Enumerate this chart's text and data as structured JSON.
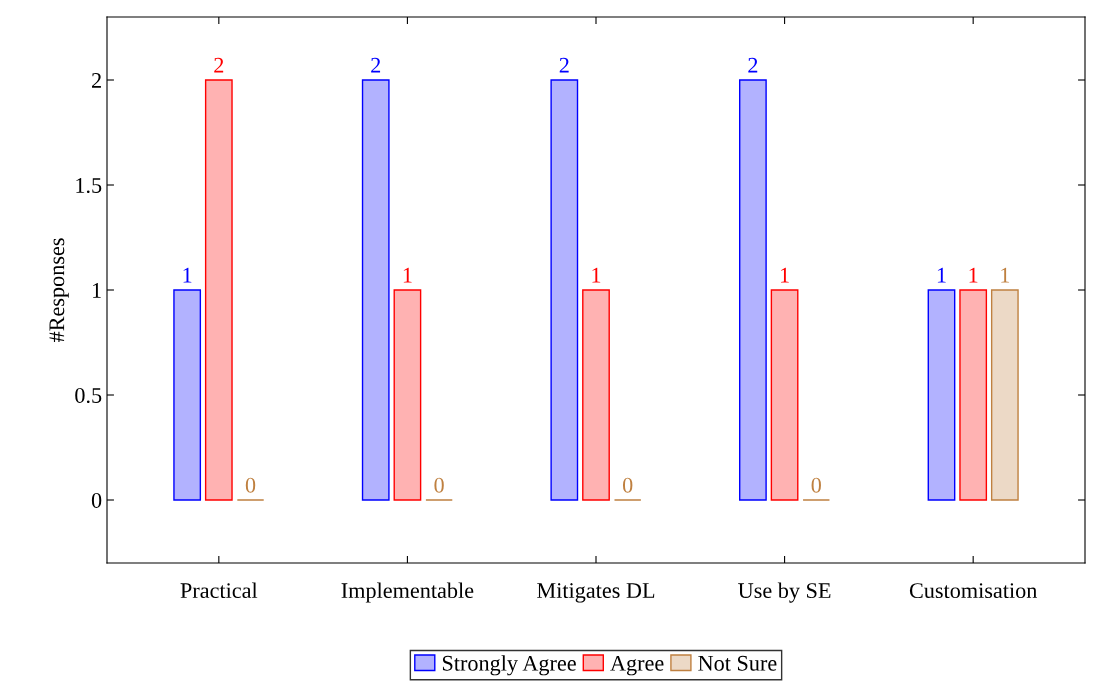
{
  "chart_data": {
    "type": "bar",
    "ylabel": "#Responses",
    "categories": [
      "Practical",
      "Implementable",
      "Mitigates DL",
      "Use by SE",
      "Customisation"
    ],
    "series": [
      {
        "name": "Strongly Agree",
        "color": "#0000ff",
        "values": [
          1,
          2,
          2,
          2,
          1
        ]
      },
      {
        "name": "Agree",
        "color": "#ff0000",
        "values": [
          2,
          1,
          1,
          1,
          1
        ]
      },
      {
        "name": "Not Sure",
        "color": "#bf8040",
        "values": [
          0,
          0,
          0,
          0,
          1
        ]
      }
    ],
    "ylim": [
      -0.3,
      2.3
    ],
    "yticks": [
      0,
      {
        "value": 0.5,
        "label": "0.5"
      },
      1,
      {
        "value": 1.5,
        "label": "1.5"
      },
      2
    ],
    "data_labels": true,
    "legend": "bottom",
    "grid": false
  }
}
